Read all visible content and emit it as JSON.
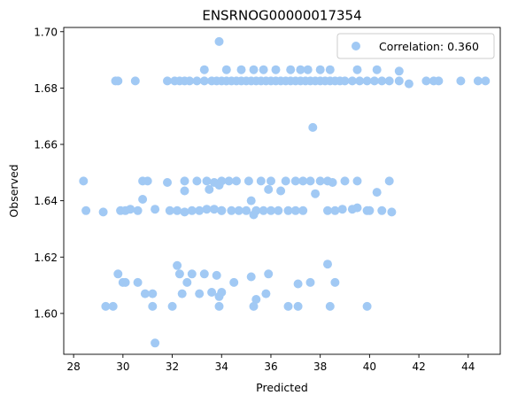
{
  "chart_data": {
    "type": "scatter",
    "title": "ENSRNOG00000017354",
    "xlabel": "Predicted",
    "ylabel": "Observed",
    "xlim": [
      27.6,
      45.3
    ],
    "ylim": [
      1.5855,
      1.7015
    ],
    "xticks": [
      28,
      30,
      32,
      34,
      36,
      38,
      40,
      42,
      44
    ],
    "yticks": [
      1.6,
      1.62,
      1.64,
      1.66,
      1.68,
      1.7
    ],
    "ytick_labels": [
      "1.60",
      "1.62",
      "1.64",
      "1.66",
      "1.68",
      "1.70"
    ],
    "grid": false,
    "legend_position": "top-right",
    "marker_color": "#a1c9f4",
    "series": [
      {
        "name": "Correlation: 0.360",
        "x": [
          33.9,
          29.7,
          29.8,
          30.5,
          31.8,
          32.1,
          32.3,
          32.5,
          32.7,
          33.0,
          33.3,
          33.6,
          33.8,
          34.0,
          34.2,
          34.4,
          34.6,
          34.8,
          35.0,
          35.2,
          35.4,
          35.6,
          35.8,
          36.0,
          36.2,
          36.4,
          36.6,
          36.8,
          37.0,
          37.2,
          37.4,
          37.6,
          37.8,
          38.0,
          38.2,
          38.4,
          38.6,
          38.8,
          39.0,
          39.3,
          39.6,
          39.9,
          40.2,
          40.5,
          40.8,
          41.2,
          41.6,
          42.3,
          42.6,
          42.8,
          43.7,
          44.4,
          44.7,
          33.3,
          34.2,
          34.8,
          35.3,
          35.7,
          36.2,
          36.8,
          37.2,
          37.5,
          38.0,
          38.4,
          39.5,
          40.3,
          41.2,
          37.7,
          28.4,
          30.8,
          31.0,
          31.8,
          32.5,
          33.0,
          33.4,
          33.7,
          34.0,
          34.3,
          34.6,
          35.1,
          35.6,
          36.0,
          36.6,
          37.0,
          37.3,
          37.6,
          38.0,
          38.3,
          38.5,
          39.0,
          39.5,
          40.8,
          32.5,
          33.5,
          33.9,
          35.9,
          36.4,
          37.8,
          40.3,
          30.8,
          35.2,
          35.3,
          28.5,
          29.2,
          29.9,
          30.1,
          30.3,
          30.6,
          31.3,
          31.9,
          32.2,
          32.5,
          32.8,
          33.1,
          33.4,
          33.7,
          34.0,
          34.4,
          34.7,
          35.0,
          35.4,
          35.7,
          36.0,
          36.3,
          36.7,
          37.0,
          37.3,
          38.3,
          38.6,
          38.9,
          39.3,
          39.5,
          39.9,
          40.0,
          40.5,
          40.9,
          34.0,
          29.8,
          32.2,
          38.3,
          30.1,
          32.3,
          32.8,
          33.3,
          33.8,
          35.2,
          35.9,
          30.0,
          30.6,
          32.6,
          34.5,
          30.9,
          31.2,
          32.4,
          33.1,
          33.6,
          34.0,
          35.8,
          38.6,
          35.4,
          37.1,
          37.6,
          33.9,
          29.3,
          29.6,
          31.2,
          32.0,
          33.9,
          35.3,
          36.7,
          37.1,
          38.4,
          39.9,
          31.3
        ],
        "y": [
          1.6965,
          1.6825,
          1.6825,
          1.6825,
          1.6825,
          1.6825,
          1.6825,
          1.6825,
          1.6825,
          1.6825,
          1.6825,
          1.6825,
          1.6825,
          1.6825,
          1.6825,
          1.6825,
          1.6825,
          1.6825,
          1.6825,
          1.6825,
          1.6825,
          1.6825,
          1.6825,
          1.6825,
          1.6825,
          1.6825,
          1.6825,
          1.6825,
          1.6825,
          1.6825,
          1.6825,
          1.6825,
          1.6825,
          1.6825,
          1.6825,
          1.6825,
          1.6825,
          1.6825,
          1.6825,
          1.6825,
          1.6825,
          1.6825,
          1.6825,
          1.6825,
          1.6825,
          1.6825,
          1.6815,
          1.6825,
          1.6825,
          1.6825,
          1.6825,
          1.6825,
          1.6825,
          1.6865,
          1.6865,
          1.6865,
          1.6865,
          1.6865,
          1.6865,
          1.6865,
          1.6865,
          1.6865,
          1.6865,
          1.6865,
          1.6865,
          1.6865,
          1.686,
          1.666,
          1.647,
          1.647,
          1.647,
          1.6465,
          1.647,
          1.647,
          1.647,
          1.6465,
          1.647,
          1.647,
          1.647,
          1.647,
          1.647,
          1.647,
          1.647,
          1.647,
          1.647,
          1.647,
          1.647,
          1.647,
          1.6465,
          1.647,
          1.647,
          1.647,
          1.6435,
          1.644,
          1.6455,
          1.644,
          1.6435,
          1.6425,
          1.643,
          1.6405,
          1.64,
          1.635,
          1.6365,
          1.636,
          1.6365,
          1.6365,
          1.637,
          1.6365,
          1.637,
          1.6365,
          1.6365,
          1.636,
          1.6365,
          1.6365,
          1.637,
          1.637,
          1.6365,
          1.6365,
          1.6365,
          1.6365,
          1.6365,
          1.6365,
          1.6365,
          1.6365,
          1.6365,
          1.6365,
          1.6365,
          1.6365,
          1.6365,
          1.637,
          1.637,
          1.6375,
          1.6365,
          1.6365,
          1.6365,
          1.636,
          1.6365,
          1.614,
          1.617,
          1.6175,
          1.611,
          1.614,
          1.614,
          1.614,
          1.6135,
          1.613,
          1.614,
          1.611,
          1.611,
          1.611,
          1.611,
          1.607,
          1.607,
          1.607,
          1.607,
          1.6075,
          1.6075,
          1.607,
          1.611,
          1.605,
          1.6105,
          1.611,
          1.606,
          1.6025,
          1.6025,
          1.6025,
          1.6025,
          1.6025,
          1.6025,
          1.6025,
          1.6025,
          1.6025,
          1.6025,
          1.5895
        ]
      }
    ]
  }
}
